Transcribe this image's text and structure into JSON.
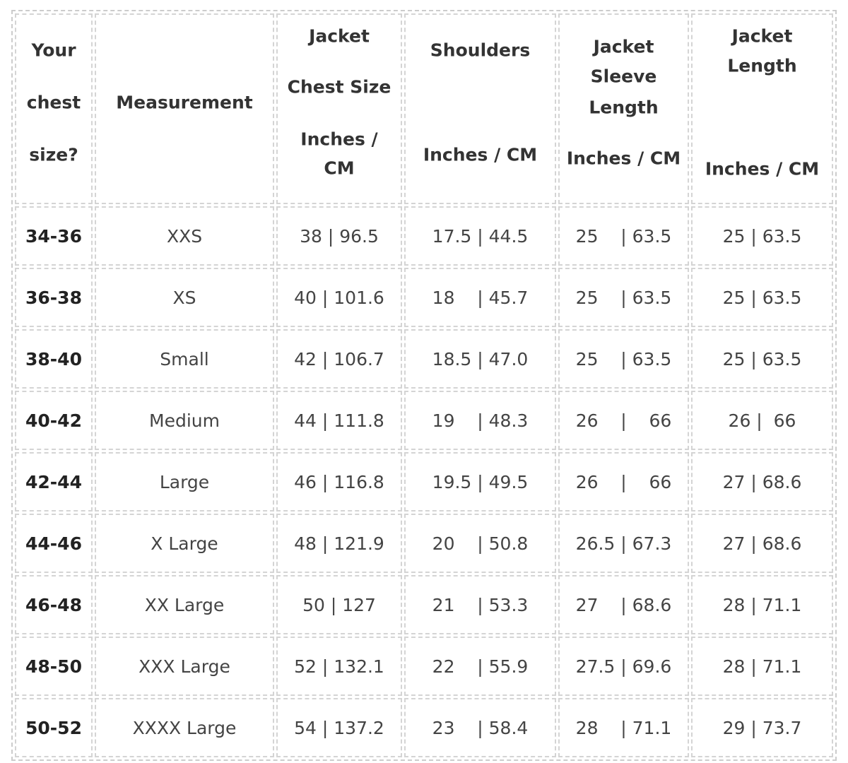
{
  "table": {
    "header": [
      [
        "Your",
        "chest",
        "size?"
      ],
      [
        "Measurement"
      ],
      [
        "Jacket",
        "Chest Size",
        "Inches /",
        "CM"
      ],
      [
        "Shoulders",
        "Inches / CM"
      ],
      [
        "Jacket",
        "Sleeve",
        "Length",
        "Inches / CM"
      ],
      [
        "Jacket",
        "Length",
        "Inches / CM"
      ]
    ],
    "rows": [
      [
        "34-36",
        "XXS",
        "38 | 96.5",
        "17.5 | 44.5",
        "25    | 63.5",
        "25 | 63.5"
      ],
      [
        "36-38",
        "XS",
        "40 | 101.6",
        "18    | 45.7",
        "25    | 63.5",
        "25 | 63.5"
      ],
      [
        "38-40",
        "Small",
        "42 | 106.7",
        "18.5 | 47.0",
        "25    | 63.5",
        "25 | 63.5"
      ],
      [
        "40-42",
        "Medium",
        "44 | 111.8",
        "19    | 48.3",
        "26    |    66",
        "26 |  66"
      ],
      [
        "42-44",
        "Large",
        "46 | 116.8",
        "19.5 | 49.5",
        "26    |    66",
        "27 | 68.6"
      ],
      [
        "44-46",
        "X Large",
        "48 | 121.9",
        "20    | 50.8",
        "26.5 | 67.3",
        "27 | 68.6"
      ],
      [
        "46-48",
        "XX Large",
        "50 | 127",
        "21    | 53.3",
        "27    | 68.6",
        "28 | 71.1"
      ],
      [
        "48-50",
        "XXX Large",
        "52 | 132.1",
        "22    | 55.9",
        "27.5 | 69.6",
        "28 | 71.1"
      ],
      [
        "50-52",
        "XXXX Large",
        "54 | 137.2",
        "23    | 58.4",
        "28    | 71.1",
        "29 | 73.7"
      ]
    ]
  }
}
